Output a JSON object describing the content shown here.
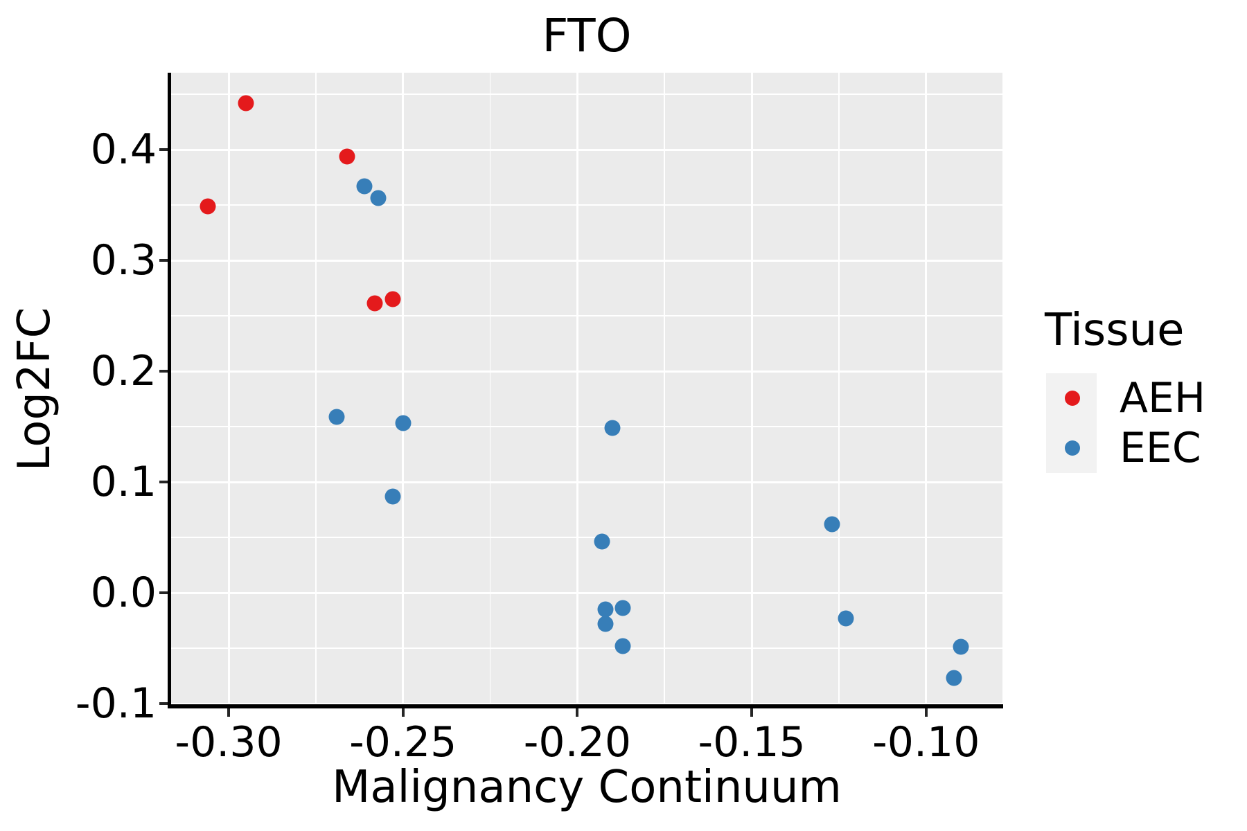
{
  "title": "FTO",
  "colors": {
    "panel_bg": "#EBEBEB",
    "grid": "#FFFFFF",
    "axis": "#000000",
    "tick": "#262626",
    "text": "#000000",
    "legend_key_bg": "#F2F2F2",
    "aeh_red": "#E41A1C",
    "eec_blue": "#377EB8"
  },
  "legend": {
    "title": "Tissue",
    "entries": [
      {
        "label": "AEH",
        "color": "#E41A1C"
      },
      {
        "label": "EEC",
        "color": "#377EB8"
      }
    ]
  },
  "chart_data": {
    "type": "scatter",
    "title": "FTO",
    "xlabel": "Malignancy Continuum",
    "ylabel": "Log2FC",
    "xlim": [
      -0.3165,
      -0.0781
    ],
    "ylim": [
      -0.1025,
      0.4694
    ],
    "grid": true,
    "legend_position": "right",
    "x_ticks": [
      -0.3,
      -0.25,
      -0.2,
      -0.15,
      -0.1
    ],
    "x_tick_labels": [
      "-0.30",
      "-0.25",
      "-0.20",
      "-0.15",
      "-0.10"
    ],
    "x_minor_ticks": [
      -0.325,
      -0.275,
      -0.225,
      -0.175,
      -0.125,
      -0.075
    ],
    "y_ticks": [
      0.4,
      0.3,
      0.2,
      0.1,
      0.0,
      -0.1
    ],
    "y_tick_labels": [
      "0.4",
      "0.3",
      "0.2",
      "0.1",
      "0.0",
      "-0.1"
    ],
    "y_minor_ticks": [
      0.45,
      0.35,
      0.25,
      0.15,
      0.05,
      -0.05
    ],
    "series": [
      {
        "name": "AEH",
        "color": "#E41A1C",
        "points": [
          [
            -0.306,
            0.349
          ],
          [
            -0.295,
            0.442
          ],
          [
            -0.266,
            0.394
          ],
          [
            -0.258,
            0.261
          ],
          [
            -0.253,
            0.265
          ]
        ]
      },
      {
        "name": "EEC",
        "color": "#377EB8",
        "points": [
          [
            -0.269,
            0.159
          ],
          [
            -0.261,
            0.367
          ],
          [
            -0.257,
            0.356
          ],
          [
            -0.253,
            0.087
          ],
          [
            -0.25,
            0.153
          ],
          [
            -0.193,
            0.046
          ],
          [
            -0.192,
            -0.015
          ],
          [
            -0.192,
            -0.028
          ],
          [
            -0.19,
            0.149
          ],
          [
            -0.187,
            -0.014
          ],
          [
            -0.187,
            -0.048
          ],
          [
            -0.127,
            0.062
          ],
          [
            -0.123,
            -0.023
          ],
          [
            -0.092,
            -0.077
          ],
          [
            -0.09,
            -0.049
          ]
        ]
      }
    ]
  }
}
